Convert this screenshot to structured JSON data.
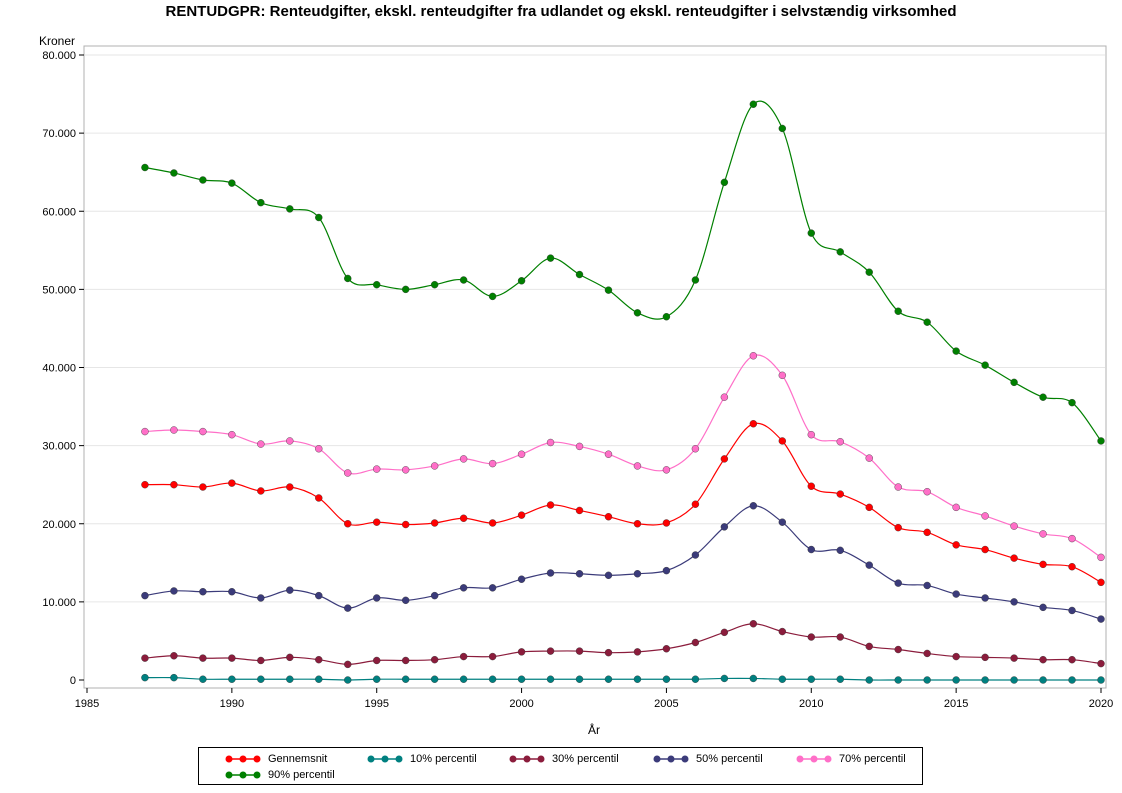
{
  "chart_data": {
    "type": "line",
    "title": "RENTUDGPR: Renteudgifter, ekskl. renteudgifter fra udlandet og ekskl. renteudgifter i selvstændig virksomhed",
    "ylabel": "Kroner",
    "xlabel": "År",
    "xlim": [
      1985,
      2020
    ],
    "ylim": [
      0,
      80000
    ],
    "x_ticks": [
      1985,
      1990,
      1995,
      2000,
      2005,
      2010,
      2015,
      2020
    ],
    "y_ticks": [
      0,
      10000,
      20000,
      30000,
      40000,
      50000,
      60000,
      70000,
      80000
    ],
    "y_tick_labels": [
      "0",
      "10.000",
      "20.000",
      "30.000",
      "40.000",
      "50.000",
      "60.000",
      "70.000",
      "80.000"
    ],
    "grid": "horizontal",
    "legend_position": "bottom",
    "x": [
      1987,
      1988,
      1989,
      1990,
      1991,
      1992,
      1993,
      1994,
      1995,
      1996,
      1997,
      1998,
      1999,
      2000,
      2001,
      2002,
      2003,
      2004,
      2005,
      2006,
      2007,
      2008,
      2009,
      2010,
      2011,
      2012,
      2013,
      2014,
      2015,
      2016,
      2017,
      2018,
      2019,
      2020
    ],
    "series": [
      {
        "name": "Gennemsnit",
        "color": "#ff0000",
        "values": [
          25000,
          25000,
          24700,
          25200,
          24200,
          24700,
          23300,
          20000,
          20200,
          19900,
          20100,
          20700,
          20100,
          21100,
          22400,
          21700,
          20900,
          20000,
          20100,
          22500,
          28300,
          32800,
          30600,
          24800,
          23800,
          22100,
          19500,
          18900,
          17300,
          16700,
          15600,
          14800,
          14500,
          12500
        ]
      },
      {
        "name": "10% percentil",
        "color": "#008080",
        "values": [
          300,
          300,
          100,
          100,
          100,
          100,
          100,
          0,
          100,
          100,
          100,
          100,
          100,
          100,
          100,
          100,
          100,
          100,
          100,
          100,
          200,
          200,
          100,
          100,
          100,
          0,
          0,
          0,
          0,
          0,
          0,
          0,
          0,
          0
        ]
      },
      {
        "name": "30% percentil",
        "color": "#8b1c3c",
        "values": [
          2800,
          3100,
          2800,
          2800,
          2500,
          2900,
          2600,
          2000,
          2500,
          2500,
          2600,
          3000,
          3000,
          3600,
          3700,
          3700,
          3500,
          3600,
          4000,
          4800,
          6100,
          7200,
          6200,
          5500,
          5500,
          4300,
          3900,
          3400,
          3000,
          2900,
          2800,
          2600,
          2600,
          2100
        ]
      },
      {
        "name": "50% percentil",
        "color": "#3b3b7a",
        "values": [
          10800,
          11400,
          11300,
          11300,
          10500,
          11500,
          10800,
          9200,
          10500,
          10200,
          10800,
          11800,
          11800,
          12900,
          13700,
          13600,
          13400,
          13600,
          14000,
          16000,
          19600,
          22300,
          20200,
          16700,
          16600,
          14700,
          12400,
          12100,
          11000,
          10500,
          10000,
          9300,
          8900,
          7800
        ]
      },
      {
        "name": "70% percentil",
        "color": "#ff6fc8",
        "values": [
          31800,
          32000,
          31800,
          31400,
          30200,
          30600,
          29600,
          26500,
          27000,
          26900,
          27400,
          28300,
          27700,
          28900,
          30400,
          29900,
          28900,
          27400,
          26900,
          29600,
          36200,
          41500,
          39000,
          31400,
          30500,
          28400,
          24700,
          24100,
          22100,
          21000,
          19700,
          18700,
          18100,
          15700
        ]
      },
      {
        "name": "90% percentil",
        "color": "#008000",
        "values": [
          65600,
          64900,
          64000,
          63600,
          61100,
          60300,
          59200,
          51400,
          50600,
          50000,
          50600,
          51200,
          49100,
          51100,
          54000,
          51900,
          49900,
          47000,
          46500,
          51200,
          63700,
          73700,
          70600,
          57200,
          54800,
          52200,
          47200,
          45800,
          42100,
          40300,
          38100,
          36200,
          35500,
          30600
        ]
      }
    ]
  }
}
